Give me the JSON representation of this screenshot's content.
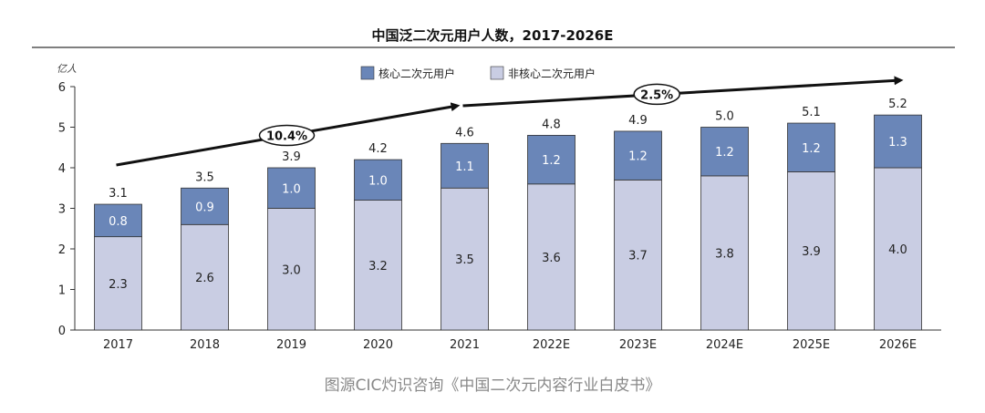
{
  "chart_data": {
    "type": "bar",
    "stacked": true,
    "title": "中国泛二次元用户人数，2017-2026E",
    "ylabel": "亿人",
    "ylim": [
      0,
      6
    ],
    "yticks": [
      "0",
      "1",
      "2",
      "3",
      "4",
      "5",
      "6"
    ],
    "categories": [
      "2017",
      "2018",
      "2019",
      "2020",
      "2021",
      "2022E",
      "2023E",
      "2024E",
      "2025E",
      "2026E"
    ],
    "series": [
      {
        "name": "非核心二次元用户",
        "color": "#c9cde3",
        "values": [
          2.3,
          2.6,
          3.0,
          3.2,
          3.5,
          3.6,
          3.7,
          3.8,
          3.9,
          4.0
        ],
        "labels": [
          "2.3",
          "2.6",
          "3.0",
          "3.2",
          "3.5",
          "3.6",
          "3.7",
          "3.8",
          "3.9",
          "4.0"
        ]
      },
      {
        "name": "核心二次元用户",
        "color": "#6a86b8",
        "values": [
          0.8,
          0.9,
          1.0,
          1.0,
          1.1,
          1.2,
          1.2,
          1.2,
          1.2,
          1.3
        ],
        "labels": [
          "0.8",
          "0.9",
          "1.0",
          "1.0",
          "1.1",
          "1.2",
          "1.2",
          "1.2",
          "1.2",
          "1.3"
        ]
      }
    ],
    "totals": [
      "3.1",
      "3.5",
      "3.9",
      "4.2",
      "4.6",
      "4.8",
      "4.9",
      "5.0",
      "5.1",
      "5.2"
    ],
    "legend": [
      "核心二次元用户",
      "非核心二次元用户"
    ],
    "annotations": [
      {
        "text": "10.4%",
        "span": [
          "2017",
          "2021"
        ]
      },
      {
        "text": "2.5%",
        "span": [
          "2021",
          "2026E"
        ]
      }
    ]
  },
  "caption": "图源CIC灼识咨询《中国二次元内容行业白皮书》"
}
